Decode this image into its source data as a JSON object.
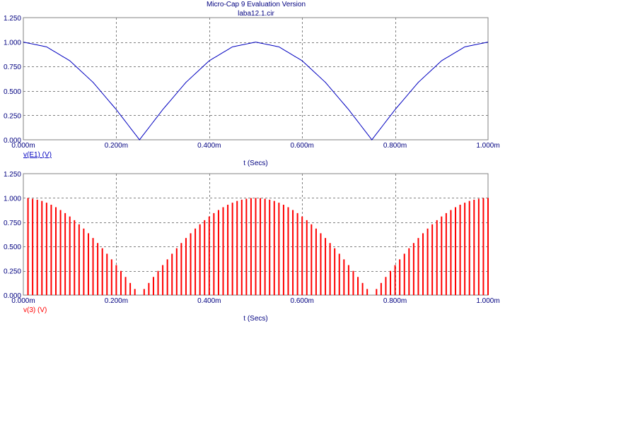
{
  "header": {
    "title": "Micro-Cap 9 Evaluation Version",
    "subtitle": "laba12.1.cir"
  },
  "colors": {
    "axis_text": "#000080",
    "grid": "#808080",
    "frame": "#808080",
    "trace_top": "#0000c0",
    "trace_bottom": "#ff0000",
    "title": "#000080"
  },
  "chart_data": [
    {
      "type": "line",
      "ylabel": "v(E1) (V)",
      "xlabel": "t (Secs)",
      "xlim": [
        0,
        1.0
      ],
      "ylim": [
        0,
        1.25
      ],
      "x_unit": "ms",
      "x_ticks": [
        "0.000m",
        "0.200m",
        "0.400m",
        "0.600m",
        "0.800m",
        "1.000m"
      ],
      "y_ticks": [
        "0.000",
        "0.250",
        "0.500",
        "0.750",
        "1.000",
        "1.250"
      ],
      "grid": true,
      "series": [
        {
          "name": "v(E1) (V)",
          "x": [
            0,
            0.05,
            0.1,
            0.15,
            0.2,
            0.25,
            0.3,
            0.35,
            0.4,
            0.45,
            0.5,
            0.55,
            0.6,
            0.65,
            0.7,
            0.75,
            0.8,
            0.85,
            0.9,
            0.95,
            1.0
          ],
          "values": [
            1.0,
            0.951,
            0.809,
            0.588,
            0.309,
            0.0,
            0.309,
            0.588,
            0.809,
            0.951,
            1.0,
            0.951,
            0.809,
            0.588,
            0.309,
            0.0,
            0.309,
            0.588,
            0.809,
            0.951,
            1.0
          ]
        }
      ]
    },
    {
      "type": "bar",
      "ylabel": "v(3) (V)",
      "xlabel": "t (Secs)",
      "xlim": [
        0,
        1.0
      ],
      "ylim": [
        0,
        1.25
      ],
      "x_unit": "ms",
      "x_ticks": [
        "0.000m",
        "0.200m",
        "0.400m",
        "0.600m",
        "0.800m",
        "1.000m"
      ],
      "y_ticks": [
        "0.000",
        "0.250",
        "0.500",
        "0.750",
        "1.000",
        "1.250"
      ],
      "grid": true,
      "series": [
        {
          "name": "v(3) (V)",
          "x": [
            0.01,
            0.02,
            0.03,
            0.04,
            0.05,
            0.06,
            0.07,
            0.08,
            0.09,
            0.1,
            0.11,
            0.12,
            0.13,
            0.14,
            0.15,
            0.16,
            0.17,
            0.18,
            0.19,
            0.2,
            0.21,
            0.22,
            0.23,
            0.24,
            0.25,
            0.26,
            0.27,
            0.28,
            0.29,
            0.3,
            0.31,
            0.32,
            0.33,
            0.34,
            0.35,
            0.36,
            0.37,
            0.38,
            0.39,
            0.4,
            0.41,
            0.42,
            0.43,
            0.44,
            0.45,
            0.46,
            0.47,
            0.48,
            0.49,
            0.5,
            0.51,
            0.52,
            0.53,
            0.54,
            0.55,
            0.56,
            0.57,
            0.58,
            0.59,
            0.6,
            0.61,
            0.62,
            0.63,
            0.64,
            0.65,
            0.66,
            0.67,
            0.68,
            0.69,
            0.7,
            0.71,
            0.72,
            0.73,
            0.74,
            0.75,
            0.76,
            0.77,
            0.78,
            0.79,
            0.8,
            0.81,
            0.82,
            0.83,
            0.84,
            0.85,
            0.86,
            0.87,
            0.88,
            0.89,
            0.9,
            0.91,
            0.92,
            0.93,
            0.94,
            0.95,
            0.96,
            0.97,
            0.98,
            0.99,
            1.0
          ],
          "values": [
            0.998,
            0.992,
            0.982,
            0.969,
            0.951,
            0.93,
            0.905,
            0.876,
            0.844,
            0.809,
            0.771,
            0.729,
            0.685,
            0.637,
            0.588,
            0.536,
            0.482,
            0.426,
            0.368,
            0.309,
            0.249,
            0.187,
            0.125,
            0.063,
            0.0,
            0.063,
            0.125,
            0.187,
            0.249,
            0.309,
            0.368,
            0.426,
            0.482,
            0.536,
            0.588,
            0.637,
            0.685,
            0.729,
            0.771,
            0.809,
            0.844,
            0.876,
            0.905,
            0.93,
            0.951,
            0.969,
            0.982,
            0.992,
            0.998,
            1.0,
            0.998,
            0.992,
            0.982,
            0.969,
            0.951,
            0.93,
            0.905,
            0.876,
            0.844,
            0.809,
            0.771,
            0.729,
            0.685,
            0.637,
            0.588,
            0.536,
            0.482,
            0.426,
            0.368,
            0.309,
            0.249,
            0.187,
            0.125,
            0.063,
            0.0,
            0.063,
            0.125,
            0.187,
            0.249,
            0.309,
            0.368,
            0.426,
            0.482,
            0.536,
            0.588,
            0.637,
            0.685,
            0.729,
            0.771,
            0.809,
            0.844,
            0.876,
            0.905,
            0.93,
            0.951,
            0.969,
            0.982,
            0.992,
            0.998,
            1.0
          ]
        }
      ]
    }
  ]
}
